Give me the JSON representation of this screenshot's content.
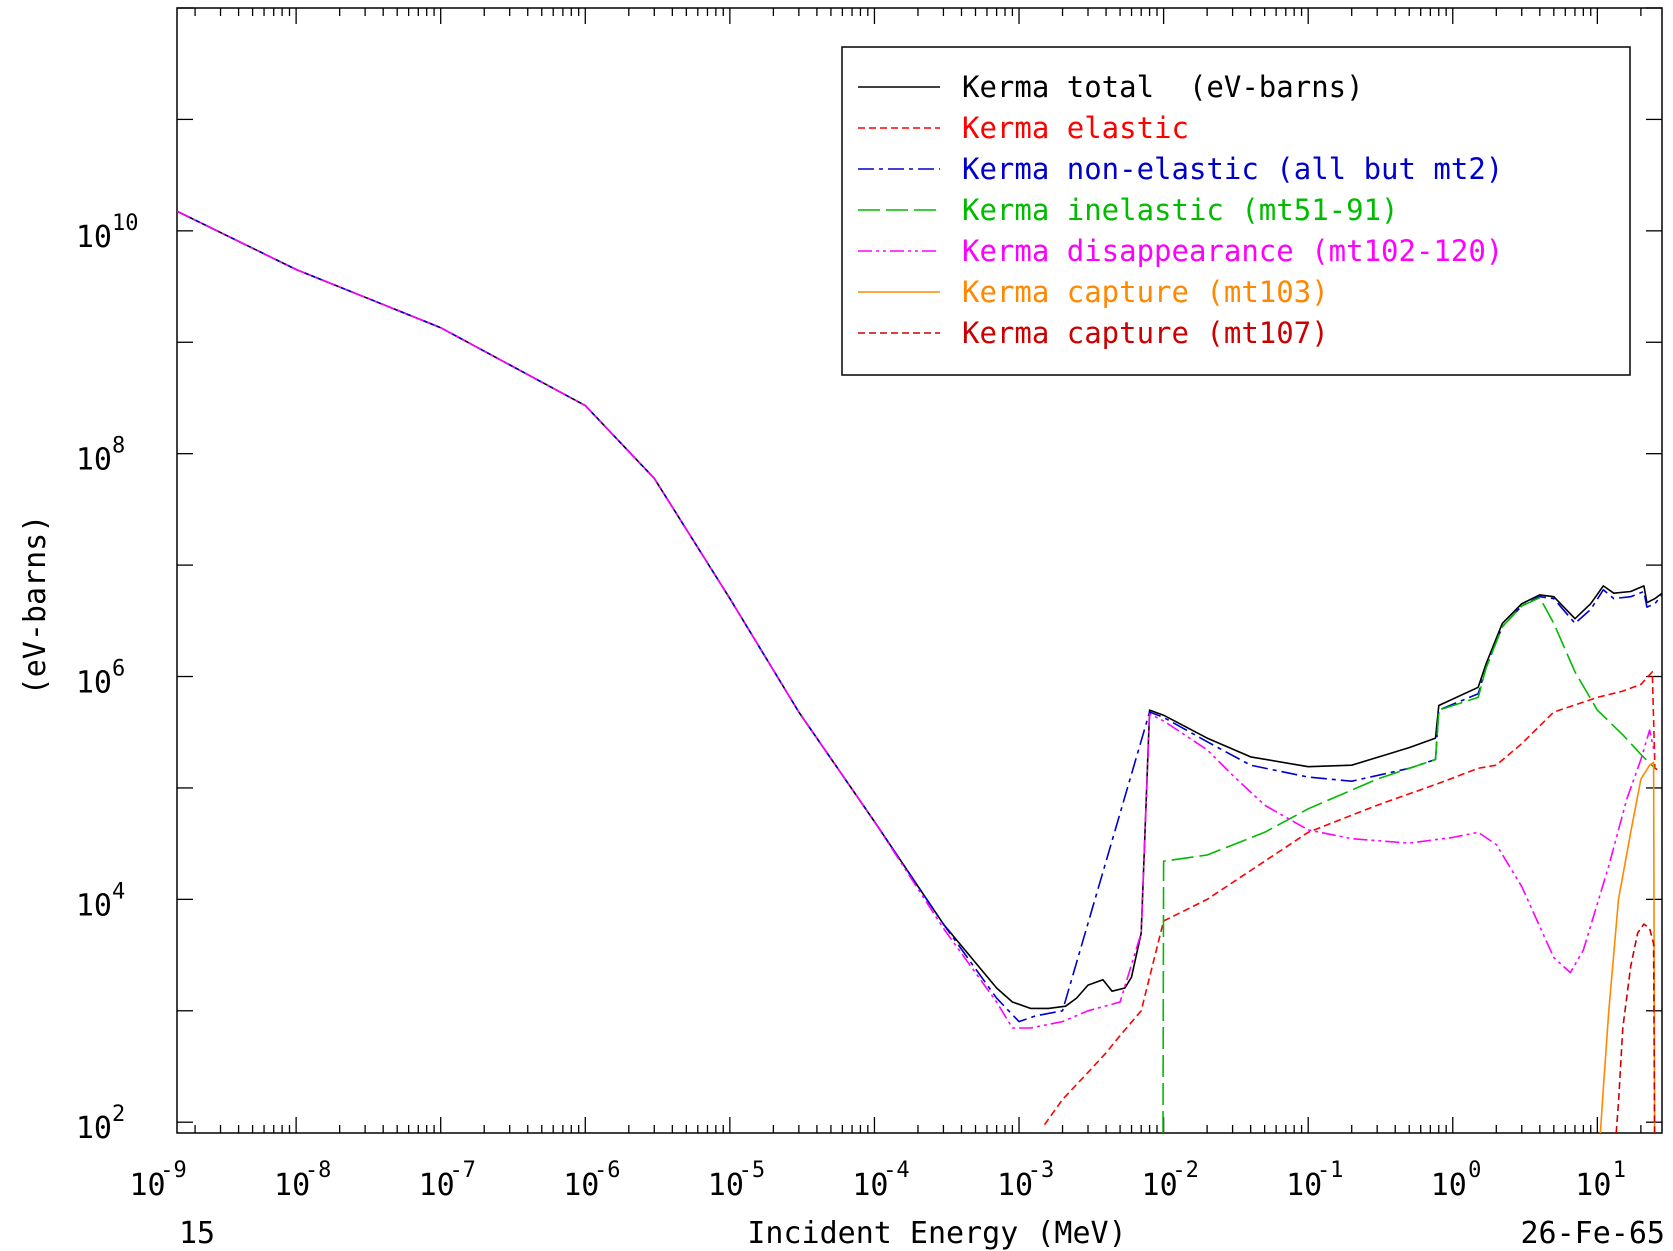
{
  "chart_data": {
    "type": "line",
    "title": "",
    "xlabel": "Incident Energy (MeV)",
    "ylabel": "(eV-barns)",
    "x_scale": "log",
    "y_scale": "log",
    "xlim": [
      1.5e-09,
      28
    ],
    "ylim": [
      80,
      1000000000000.0
    ],
    "x_ticks": [
      {
        "value": 1e-09,
        "base": "10",
        "exp": "-9"
      },
      {
        "value": 1e-08,
        "base": "10",
        "exp": "-8"
      },
      {
        "value": 1e-07,
        "base": "10",
        "exp": "-7"
      },
      {
        "value": 1e-06,
        "base": "10",
        "exp": "-6"
      },
      {
        "value": 1e-05,
        "base": "10",
        "exp": "-5"
      },
      {
        "value": 0.0001,
        "base": "10",
        "exp": "-4"
      },
      {
        "value": 0.001,
        "base": "10",
        "exp": "-3"
      },
      {
        "value": 0.01,
        "base": "10",
        "exp": "-2"
      },
      {
        "value": 0.1,
        "base": "10",
        "exp": "-1"
      },
      {
        "value": 1,
        "base": "10",
        "exp": "0"
      },
      {
        "value": 10,
        "base": "10",
        "exp": "1"
      }
    ],
    "y_ticks": [
      {
        "value": 100.0,
        "base": "10",
        "exp": "2"
      },
      {
        "value": 10000.0,
        "base": "10",
        "exp": "4"
      },
      {
        "value": 1000000.0,
        "base": "10",
        "exp": "6"
      },
      {
        "value": 100000000.0,
        "base": "10",
        "exp": "8"
      },
      {
        "value": 10000000000.0,
        "base": "10",
        "exp": "10"
      }
    ],
    "footer_left": "15",
    "footer_right": "26-Fe-65",
    "grid": false,
    "legend_position": "top-right",
    "series": [
      {
        "name": "Kerma total  (eV-barns)",
        "color": "#000000",
        "dash": "solid",
        "points": [
          [
            1.5e-09,
            15000000000.0
          ],
          [
            1e-08,
            4500000000.0
          ],
          [
            1e-07,
            1350000000.0
          ],
          [
            1e-06,
            270000000.0
          ],
          [
            3e-06,
            60000000.0
          ],
          [
            1e-05,
            5000000.0
          ],
          [
            3e-05,
            480000.0
          ],
          [
            0.0001,
            50000.0
          ],
          [
            0.0003,
            6000.0
          ],
          [
            0.0007,
            1600.0
          ],
          [
            0.0009,
            1200.0
          ],
          [
            0.0012,
            1050.0
          ],
          [
            0.0016,
            1050.0
          ],
          [
            0.0021,
            1100.0
          ],
          [
            0.0025,
            1300.0
          ],
          [
            0.003,
            1700.0
          ],
          [
            0.0038,
            1900.0
          ],
          [
            0.0044,
            1500.0
          ],
          [
            0.0054,
            1600.0
          ],
          [
            0.006,
            2000.0
          ],
          [
            0.007,
            5000.0
          ],
          [
            0.008,
            500000.0
          ],
          [
            0.01,
            450000.0
          ],
          [
            0.02,
            280000.0
          ],
          [
            0.04,
            190000.0
          ],
          [
            0.1,
            155000.0
          ],
          [
            0.2,
            160000.0
          ],
          [
            0.5,
            230000.0
          ],
          [
            0.76,
            280000.0
          ],
          [
            0.8,
            550000.0
          ],
          [
            1.5,
            800000.0
          ],
          [
            1.7,
            1300000.0
          ],
          [
            2.2,
            3000000.0
          ],
          [
            3,
            4500000.0
          ],
          [
            4,
            5400000.0
          ],
          [
            5,
            5200000.0
          ],
          [
            7,
            3300000.0
          ],
          [
            9,
            4500000.0
          ],
          [
            11,
            6500000.0
          ],
          [
            13,
            5600000.0
          ],
          [
            17,
            5800000.0
          ],
          [
            21,
            6500000.0
          ],
          [
            22,
            4600000.0
          ],
          [
            25,
            5000000.0
          ],
          [
            28,
            5600000.0
          ]
        ]
      },
      {
        "name": "Kerma elastic",
        "color": "#ff0000",
        "dash": "dashed",
        "points": [
          [
            0.0015,
            95
          ],
          [
            0.002,
            160
          ],
          [
            0.003,
            280
          ],
          [
            0.004,
            420
          ],
          [
            0.005,
            600
          ],
          [
            0.007,
            1000.0
          ],
          [
            0.01,
            6400.0
          ],
          [
            0.02,
            10000.0
          ],
          [
            0.05,
            22000.0
          ],
          [
            0.1,
            40000.0
          ],
          [
            0.3,
            70000.0
          ],
          [
            0.8,
            110000.0
          ],
          [
            1.5,
            150000.0
          ],
          [
            2,
            160000.0
          ],
          [
            3,
            250000.0
          ],
          [
            5,
            480000.0
          ],
          [
            10,
            650000.0
          ],
          [
            15,
            740000.0
          ],
          [
            20,
            850000.0
          ],
          [
            24,
            1100000.0
          ],
          [
            25,
            150000.0
          ],
          [
            28,
            140000.0
          ]
        ]
      },
      {
        "name": "Kerma non-elastic (all but mt2)",
        "color": "#0000cc",
        "dash": "dashdot",
        "points": [
          [
            1.5e-09,
            15000000000.0
          ],
          [
            1e-08,
            4500000000.0
          ],
          [
            1e-07,
            1350000000.0
          ],
          [
            1e-06,
            270000000.0
          ],
          [
            3e-06,
            60000000.0
          ],
          [
            1e-05,
            5000000.0
          ],
          [
            3e-05,
            480000.0
          ],
          [
            0.0001,
            50000.0
          ],
          [
            0.0003,
            6000.0
          ],
          [
            0.0007,
            1300.0
          ],
          [
            0.001,
            800
          ],
          [
            0.0013,
            900
          ],
          [
            0.002,
            1000.0
          ],
          [
            0.008,
            480000.0
          ],
          [
            0.01,
            430000.0
          ],
          [
            0.02,
            260000.0
          ],
          [
            0.04,
            160000.0
          ],
          [
            0.1,
            125000.0
          ],
          [
            0.2,
            115000.0
          ],
          [
            0.5,
            150000.0
          ],
          [
            0.76,
            180000.0
          ],
          [
            0.8,
            500000.0
          ],
          [
            1.5,
            700000.0
          ],
          [
            1.7,
            1200000.0
          ],
          [
            2.2,
            2800000.0
          ],
          [
            3,
            4300000.0
          ],
          [
            4,
            5200000.0
          ],
          [
            5,
            5000000.0
          ],
          [
            7,
            3000000.0
          ],
          [
            9,
            4000000.0
          ],
          [
            11,
            6000000.0
          ],
          [
            13,
            5000000.0
          ],
          [
            17,
            5200000.0
          ],
          [
            21,
            5800000.0
          ],
          [
            22,
            4200000.0
          ],
          [
            25,
            4500000.0
          ],
          [
            28,
            5400000.0
          ]
        ]
      },
      {
        "name": "Kerma inelastic (mt51-91)",
        "color": "#00bb00",
        "dash": "longdash",
        "points": [
          [
            0.0099,
            80
          ],
          [
            0.01,
            22000.0
          ],
          [
            0.02,
            25000.0
          ],
          [
            0.05,
            40000.0
          ],
          [
            0.1,
            65000.0
          ],
          [
            0.3,
            120000.0
          ],
          [
            0.76,
            180000.0
          ],
          [
            0.8,
            500000.0
          ],
          [
            1.5,
            650000.0
          ],
          [
            1.7,
            1200000.0
          ],
          [
            2.2,
            2800000.0
          ],
          [
            3,
            4300000.0
          ],
          [
            4,
            5100000.0
          ],
          [
            5,
            3000000.0
          ],
          [
            7,
            1100000.0
          ],
          [
            10,
            500000.0
          ],
          [
            15,
            300000.0
          ],
          [
            20,
            200000.0
          ],
          [
            25,
            150000.0
          ]
        ]
      },
      {
        "name": "Kerma disappearance (mt102-120)",
        "color": "#ff00ff",
        "dash": "dashdotdot",
        "points": [
          [
            1.5e-09,
            15000000000.0
          ],
          [
            1e-08,
            4500000000.0
          ],
          [
            1e-07,
            1350000000.0
          ],
          [
            1e-06,
            270000000.0
          ],
          [
            3e-06,
            60000000.0
          ],
          [
            1e-05,
            5000000.0
          ],
          [
            3e-05,
            480000.0
          ],
          [
            0.0001,
            50000.0
          ],
          [
            0.0003,
            5500.0
          ],
          [
            0.0007,
            1200.0
          ],
          [
            0.0009,
            700
          ],
          [
            0.0012,
            700
          ],
          [
            0.002,
            800
          ],
          [
            0.003,
            1000.0
          ],
          [
            0.005,
            1200.0
          ],
          [
            0.007,
            5000.0
          ],
          [
            0.008,
            460000.0
          ],
          [
            0.01,
            400000.0
          ],
          [
            0.02,
            220000.0
          ],
          [
            0.03,
            130000.0
          ],
          [
            0.05,
            70000.0
          ],
          [
            0.1,
            42000.0
          ],
          [
            0.2,
            35000.0
          ],
          [
            0.5,
            32000.0
          ],
          [
            1,
            36000.0
          ],
          [
            1.5,
            40000.0
          ],
          [
            2,
            31000.0
          ],
          [
            3,
            13000.0
          ],
          [
            5,
            3000.0
          ],
          [
            6.5,
            2200.0
          ],
          [
            8,
            3500.0
          ],
          [
            12,
            20000.0
          ],
          [
            16,
            80000.0
          ],
          [
            20,
            180000.0
          ],
          [
            23,
            330000.0
          ],
          [
            25,
            200000.0
          ]
        ]
      },
      {
        "name": "Kerma capture (mt103)",
        "color": "#ff8800",
        "dash": "solid",
        "points": [
          [
            10.5,
            80
          ],
          [
            11,
            200
          ],
          [
            12,
            1000.0
          ],
          [
            14,
            10000.0
          ],
          [
            17,
            40000.0
          ],
          [
            20,
            120000.0
          ],
          [
            23,
            160000.0
          ],
          [
            24.5,
            170000.0
          ],
          [
            24.9,
            80
          ]
        ]
      },
      {
        "name": "Kerma capture (mt107)",
        "color": "#cc0000",
        "dash": "dashed",
        "points": [
          [
            13.5,
            80
          ],
          [
            14,
            150
          ],
          [
            15,
            700
          ],
          [
            17,
            2500.0
          ],
          [
            19,
            5000.0
          ],
          [
            21,
            6000.0
          ],
          [
            23,
            5500.0
          ],
          [
            24.5,
            4000.0
          ],
          [
            24.9,
            80
          ]
        ]
      }
    ]
  }
}
